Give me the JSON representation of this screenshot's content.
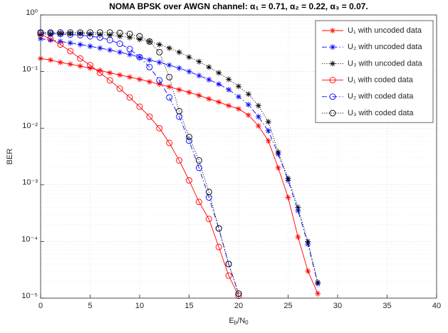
{
  "chart_data": {
    "type": "line",
    "title": "NOMA BPSK over AWGN channel: α₁ = 0.71, α₂ = 0.22,  α₃ = 0.07.",
    "xlabel": [
      "E",
      "b",
      "/N",
      "0"
    ],
    "ylabel": "BER",
    "xlim": [
      0,
      40
    ],
    "xticks": [
      0,
      5,
      10,
      15,
      20,
      25,
      30,
      35,
      40
    ],
    "ylim": [
      1e-05,
      1
    ],
    "yticks": [
      {
        "value": 1e-05,
        "label": "10⁻⁵"
      },
      {
        "value": 0.0001,
        "label": "10⁻⁴"
      },
      {
        "value": 0.001,
        "label": "10⁻³"
      },
      {
        "value": 0.01,
        "label": "10⁻²"
      },
      {
        "value": 0.1,
        "label": "10⁻¹"
      },
      {
        "value": 1,
        "label": "10⁰"
      }
    ],
    "y_scale": "log",
    "grid": true,
    "minor_grid": true,
    "legend": "upper right",
    "series": [
      {
        "name": "U₁ with uncoded data",
        "color": "#ff0000",
        "marker": "*",
        "dash": "solid",
        "x": [
          0,
          1,
          2,
          3,
          4,
          5,
          6,
          7,
          8,
          9,
          10,
          11,
          12,
          13,
          14,
          15,
          16,
          17,
          18,
          19,
          20,
          21,
          22,
          23,
          24,
          25,
          26,
          27,
          28
        ],
        "values": [
          0.17,
          0.16,
          0.145,
          0.135,
          0.125,
          0.115,
          0.105,
          0.095,
          0.087,
          0.08,
          0.073,
          0.066,
          0.06,
          0.054,
          0.048,
          0.043,
          0.038,
          0.033,
          0.029,
          0.025,
          0.022,
          0.017,
          0.011,
          0.006,
          0.002,
          0.0006,
          0.00012,
          3e-05,
          1.2e-05
        ]
      },
      {
        "name": "U₂ with uncoded data",
        "color": "#0000ff",
        "marker": "*",
        "dash": "dashdot",
        "x": [
          0,
          1,
          2,
          3,
          4,
          5,
          6,
          7,
          8,
          9,
          10,
          11,
          12,
          13,
          14,
          15,
          16,
          17,
          18,
          19,
          20,
          21,
          22,
          23,
          24,
          25,
          26,
          27,
          28
        ],
        "values": [
          0.38,
          0.36,
          0.34,
          0.32,
          0.3,
          0.28,
          0.26,
          0.24,
          0.22,
          0.2,
          0.18,
          0.16,
          0.145,
          0.13,
          0.115,
          0.1,
          0.085,
          0.072,
          0.06,
          0.048,
          0.036,
          0.026,
          0.016,
          0.009,
          0.0035,
          0.0012,
          0.00035,
          9e-05,
          1.8e-05
        ]
      },
      {
        "name": "U₃ with uncoded data",
        "color": "#000000",
        "marker": "*",
        "dash": "dotted",
        "x": [
          0,
          1,
          2,
          3,
          4,
          5,
          6,
          7,
          8,
          9,
          10,
          11,
          12,
          13,
          14,
          15,
          16,
          17,
          18,
          19,
          20,
          21,
          22,
          23,
          24,
          25,
          26,
          27,
          28
        ],
        "values": [
          0.45,
          0.46,
          0.47,
          0.47,
          0.47,
          0.46,
          0.45,
          0.44,
          0.42,
          0.4,
          0.37,
          0.34,
          0.3,
          0.26,
          0.22,
          0.18,
          0.15,
          0.12,
          0.095,
          0.073,
          0.055,
          0.04,
          0.025,
          0.013,
          0.0038,
          0.0013,
          0.0004,
          0.0001,
          1.9e-05
        ]
      },
      {
        "name": "U₁ with coded data",
        "color": "#ff0000",
        "marker": "o",
        "dash": "solid",
        "x": [
          0,
          1,
          2,
          3,
          4,
          5,
          6,
          7,
          8,
          9,
          10,
          11,
          12,
          13,
          14,
          15,
          16,
          17,
          18,
          19,
          20
        ],
        "values": [
          0.45,
          0.38,
          0.3,
          0.23,
          0.17,
          0.13,
          0.095,
          0.07,
          0.05,
          0.035,
          0.024,
          0.016,
          0.01,
          0.0055,
          0.0027,
          0.0012,
          0.0005,
          0.00025,
          8e-05,
          2.5e-05,
          1.1e-05
        ]
      },
      {
        "name": "U₂ with coded data",
        "color": "#0000ff",
        "marker": "o",
        "dash": "dashdot",
        "x": [
          0,
          1,
          2,
          3,
          4,
          5,
          6,
          7,
          8,
          9,
          10,
          11,
          12,
          13,
          14,
          15,
          16,
          17,
          18,
          19,
          20
        ],
        "values": [
          0.48,
          0.47,
          0.46,
          0.45,
          0.44,
          0.42,
          0.4,
          0.36,
          0.31,
          0.25,
          0.18,
          0.12,
          0.07,
          0.035,
          0.016,
          0.006,
          0.002,
          0.0006,
          0.00017,
          4e-05,
          1.2e-05
        ]
      },
      {
        "name": "U₃ with coded data",
        "color": "#000000",
        "marker": "o",
        "dash": "dotted",
        "x": [
          0,
          1,
          2,
          3,
          4,
          5,
          6,
          7,
          8,
          9,
          10,
          11,
          12,
          13,
          14,
          15,
          16,
          17,
          18,
          19,
          20
        ],
        "values": [
          0.49,
          0.49,
          0.49,
          0.49,
          0.49,
          0.49,
          0.49,
          0.49,
          0.48,
          0.46,
          0.42,
          0.34,
          0.22,
          0.08,
          0.02,
          0.007,
          0.0027,
          0.00075,
          0.00017,
          4e-05,
          1.2e-05
        ]
      }
    ]
  }
}
